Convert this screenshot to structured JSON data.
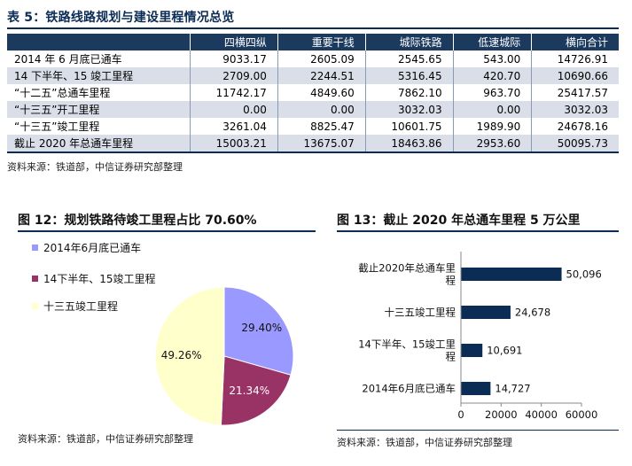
{
  "table": {
    "title": "表 5：铁路线路规划与建设里程情况总览",
    "headers": [
      "",
      "四横四纵",
      "重要干线",
      "城际铁路",
      "低速城际",
      "横向合计"
    ],
    "rows": [
      [
        "2014 年 6 月底已通车",
        "9033.17",
        "2605.09",
        "2545.65",
        "543.00",
        "14726.91"
      ],
      [
        "14 下半年、15 竣工里程",
        "2709.00",
        "2244.51",
        "5316.45",
        "420.70",
        "10690.66"
      ],
      [
        "“十二五”总通车里程",
        "11742.17",
        "4849.60",
        "7862.10",
        "963.70",
        "25417.57"
      ],
      [
        "“十三五”开工里程",
        "0.00",
        "0.00",
        "3032.03",
        "0.00",
        "3032.03"
      ],
      [
        "“十三五”竣工里程",
        "3261.04",
        "8825.47",
        "10601.75",
        "1989.90",
        "24678.16"
      ],
      [
        "截止 2020 年总通车里程",
        "15003.21",
        "13675.07",
        "18463.86",
        "2953.60",
        "50095.73"
      ]
    ],
    "source": "资料来源：铁道部，中信证券研究部整理"
  },
  "pie_figure": {
    "title": "图 12：规划铁路待竣工里程占比 70.60%",
    "source": "资料来源：铁道部，中信证券研究部整理"
  },
  "bar_figure": {
    "title": "图 13：截止 2020 年总通车里程 5 万公里",
    "source": "资料来源：铁道部，中信证券研究部整理"
  },
  "colors": {
    "navy": "#1c3a5e",
    "pie_purple": "#9999ff",
    "pie_maroon": "#993366",
    "pie_cream": "#ffffcc",
    "bar": "#0b2c55"
  },
  "chart_data": [
    {
      "type": "pie",
      "categories": [
        "2014年6月底已通车",
        "14下半年、15竣工里程",
        "十三五竣工里程"
      ],
      "values": [
        29.4,
        21.34,
        49.26
      ],
      "labels": [
        "29.40%",
        "21.34%",
        "49.26%"
      ],
      "colors": [
        "#9999ff",
        "#993366",
        "#ffffcc"
      ],
      "legend": "top-left"
    },
    {
      "type": "bar",
      "orientation": "horizontal",
      "categories": [
        "截止2020年总通车里程",
        "十三五竣工里程",
        "14下半年、15竣工里程",
        "2014年6月底已通车"
      ],
      "values": [
        50096,
        24678,
        10691,
        14727
      ],
      "labels": [
        "50,096",
        "24,678",
        "10,691",
        "14,727"
      ],
      "xlim": [
        0,
        60000
      ],
      "xticks": [
        0,
        20000,
        40000,
        60000
      ],
      "xtick_labels": [
        "0",
        "20000",
        "40000",
        "60000"
      ]
    }
  ]
}
